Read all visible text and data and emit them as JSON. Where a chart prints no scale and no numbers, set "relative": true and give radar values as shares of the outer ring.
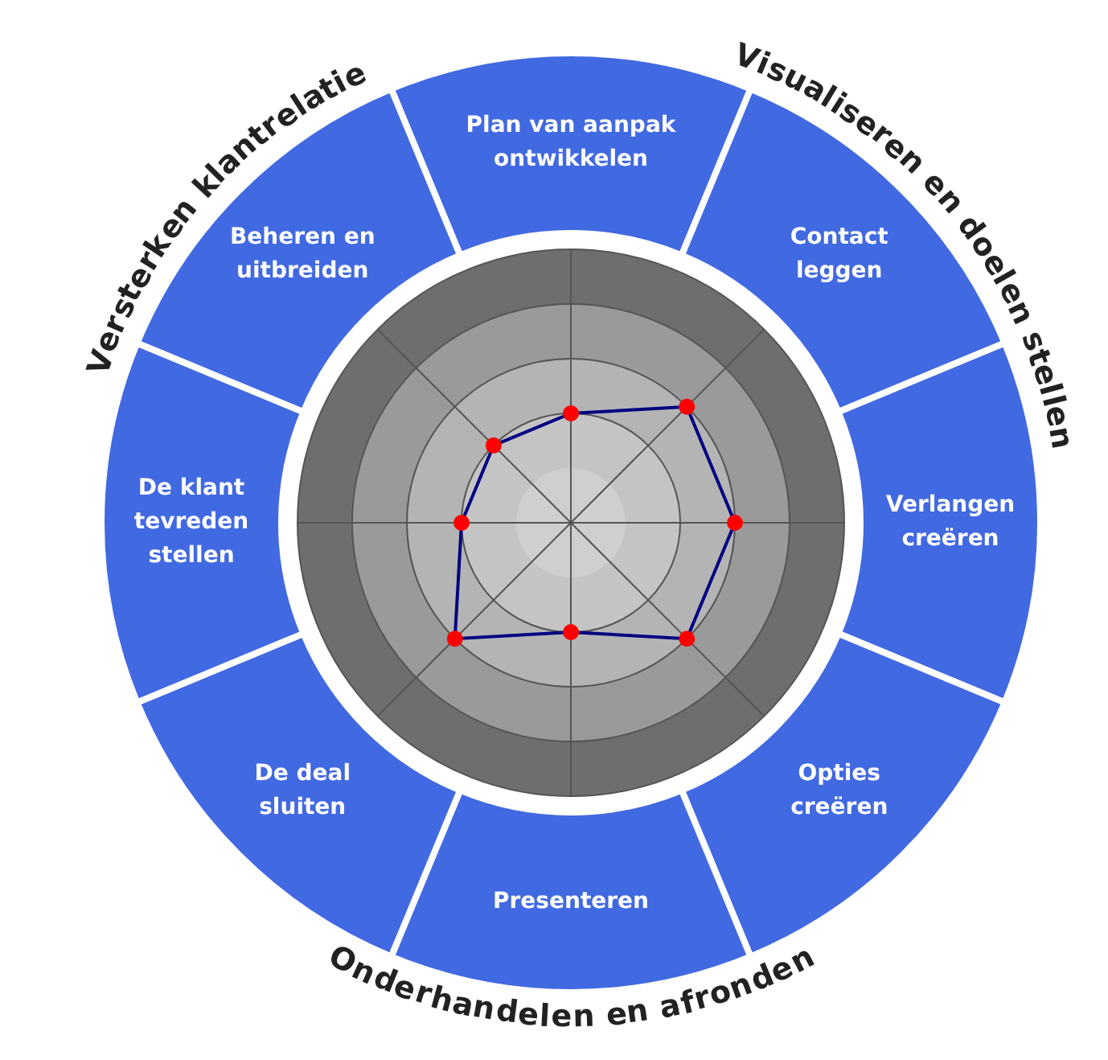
{
  "chart_data": {
    "type": "radar",
    "relative": true,
    "categories": [
      "Plan van aanpak ontwikkelen",
      "Contact leggen",
      "Verlangen creëren",
      "Opties creëren",
      "Presenteren",
      "De deal sluiten",
      "De klant tevreden stellen",
      "Beheren en uitbreiden"
    ],
    "series": [
      {
        "color": "#000080",
        "values": [
          0.4,
          0.6,
          0.6,
          0.6,
          0.4,
          0.6,
          0.4,
          0.4
        ]
      }
    ],
    "marker": "circle",
    "grid": true,
    "legend": false,
    "annotations": [
      "Versterken klantrelatie",
      "Visualiseren en doelen stellen",
      "Onderhandelen en afronden"
    ]
  }
}
